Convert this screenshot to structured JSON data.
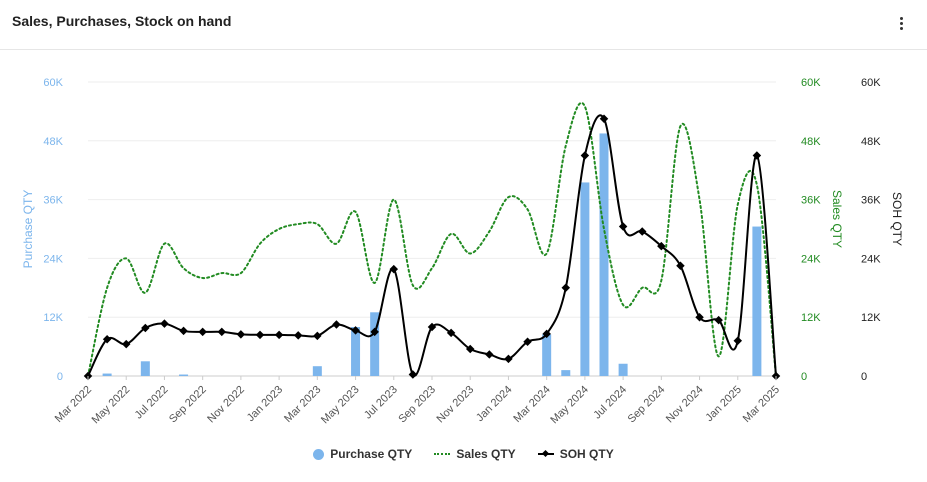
{
  "header": {
    "title": "Sales, Purchases, Stock on hand"
  },
  "icons": {
    "menu": "more-vertical-icon"
  },
  "colors": {
    "purchase": "#7cb5ec",
    "sales": "#228b22",
    "soh": "#000000",
    "grid": "#eeeeee"
  },
  "legend": {
    "purchase": "Purchase QTY",
    "sales": "Sales QTY",
    "soh": "SOH QTY"
  },
  "chart_data": {
    "type": "bar",
    "title": "Sales, Purchases, Stock on hand",
    "x": [
      "Mar 2022",
      "Apr 2022",
      "May 2022",
      "Jun 2022",
      "Jul 2022",
      "Aug 2022",
      "Sep 2022",
      "Oct 2022",
      "Nov 2022",
      "Dec 2022",
      "Jan 2023",
      "Feb 2023",
      "Mar 2023",
      "Apr 2023",
      "May 2023",
      "Jun 2023",
      "Jul 2023",
      "Aug 2023",
      "Sep 2023",
      "Oct 2023",
      "Nov 2023",
      "Dec 2023",
      "Jan 2024",
      "Feb 2024",
      "Mar 2024",
      "Apr 2024",
      "May 2024",
      "Jun 2024",
      "Jul 2024",
      "Aug 2024",
      "Sep 2024",
      "Oct 2024",
      "Nov 2024",
      "Dec 2024",
      "Jan 2025",
      "Feb 2025",
      "Mar 2025"
    ],
    "x_tick_labels": [
      "Mar 2022",
      "May 2022",
      "Jul 2022",
      "Sep 2022",
      "Nov 2022",
      "Jan 2023",
      "Mar 2023",
      "May 2023",
      "Jul 2023",
      "Sep 2023",
      "Nov 2023",
      "Jan 2024",
      "Mar 2024",
      "May 2024",
      "Jul 2024",
      "Sep 2024",
      "Nov 2024",
      "Jan 2025",
      "Mar 2025"
    ],
    "axes": {
      "left": {
        "label": "Purchase QTY",
        "ticks": [
          "0",
          "12K",
          "24K",
          "36K",
          "48K",
          "60K"
        ],
        "range": [
          0,
          60000
        ]
      },
      "right_sales": {
        "label": "Sales QTY",
        "ticks": [
          "0",
          "12K",
          "24K",
          "36K",
          "48K",
          "60K"
        ],
        "range": [
          0,
          60000
        ]
      },
      "right_soh": {
        "label": "SOH QTY",
        "ticks": [
          "0",
          "12K",
          "24K",
          "36K",
          "48K",
          "60K"
        ],
        "range": [
          0,
          60000
        ]
      }
    },
    "grid": true,
    "legend_position": "bottom-center",
    "series": [
      {
        "name": "Purchase QTY",
        "type": "bar",
        "values": [
          0,
          500,
          0,
          3000,
          0,
          300,
          0,
          0,
          0,
          0,
          0,
          0,
          2000,
          0,
          10000,
          13000,
          0,
          0,
          0,
          0,
          0,
          0,
          0,
          0,
          8500,
          1200,
          39500,
          49500,
          2500,
          0,
          0,
          0,
          0,
          0,
          0,
          30500,
          0
        ]
      },
      {
        "name": "Sales QTY",
        "type": "line",
        "style": "dotted",
        "values": [
          0,
          18000,
          24000,
          17000,
          27000,
          22000,
          20000,
          21000,
          21000,
          27000,
          30000,
          31000,
          31000,
          27000,
          33500,
          19000,
          36000,
          18500,
          22000,
          29000,
          25000,
          29500,
          36500,
          34000,
          25000,
          47000,
          55000,
          30000,
          14500,
          18000,
          19500,
          51000,
          36000,
          4000,
          35000,
          39000,
          0
        ]
      },
      {
        "name": "SOH QTY",
        "type": "line",
        "style": "solid-markers",
        "values": [
          0,
          7500,
          6500,
          9800,
          10700,
          9200,
          9000,
          9000,
          8500,
          8400,
          8400,
          8300,
          8200,
          10500,
          9300,
          9000,
          21800,
          300,
          10000,
          8800,
          5500,
          4400,
          3500,
          7000,
          8600,
          18000,
          45000,
          52500,
          30500,
          29500,
          26500,
          22500,
          12000,
          11400,
          7200,
          45000,
          0
        ]
      }
    ]
  }
}
